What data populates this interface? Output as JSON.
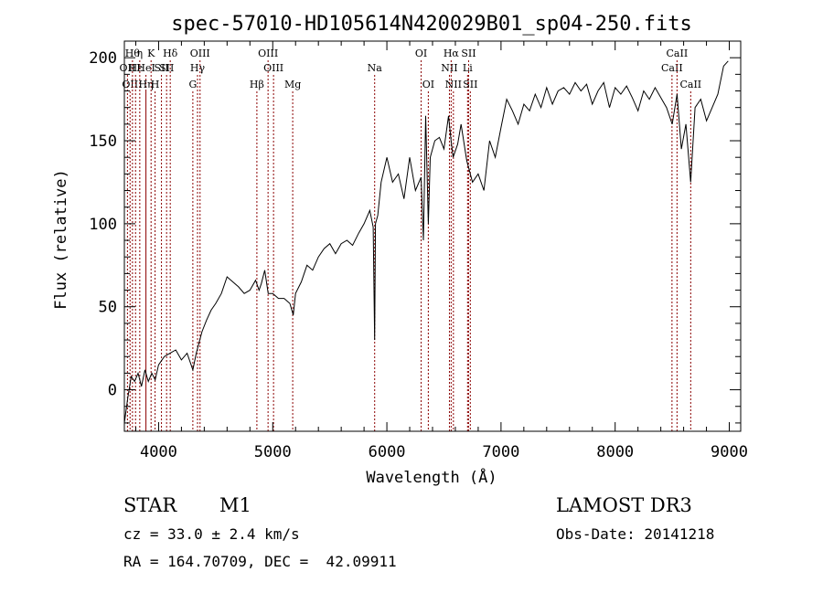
{
  "chart_data": {
    "type": "line",
    "title": "spec-57010-HD105614N420029B01_sp04-250.fits",
    "xlabel": "Wavelength (Å)",
    "ylabel": "Flux (relative)",
    "xlim": [
      3700,
      9100
    ],
    "ylim": [
      -25,
      210
    ],
    "xticks": [
      4000,
      5000,
      6000,
      7000,
      8000,
      9000
    ],
    "yticks": [
      0,
      50,
      100,
      150,
      200
    ],
    "grid": false,
    "legend": "none",
    "line_color": "#000000",
    "marker_color": "#8b0000",
    "series": [
      {
        "x": [
          3700,
          3730,
          3760,
          3790,
          3820,
          3850,
          3880,
          3910,
          3940,
          3970,
          4000,
          4050,
          4100,
          4150,
          4200,
          4250,
          4300,
          4330,
          4380,
          4420,
          4460,
          4500,
          4550,
          4600,
          4650,
          4700,
          4750,
          4800,
          4850,
          4880,
          4900,
          4930,
          4960,
          5000,
          5050,
          5100,
          5150,
          5180,
          5200,
          5250,
          5300,
          5350,
          5400,
          5450,
          5500,
          5550,
          5600,
          5650,
          5700,
          5750,
          5800,
          5850,
          5880,
          5893,
          5900,
          5920,
          5950,
          6000,
          6050,
          6100,
          6150,
          6200,
          6250,
          6300,
          6320,
          6340,
          6363,
          6380,
          6420,
          6460,
          6500,
          6540,
          6563,
          6580,
          6620,
          6650,
          6700,
          6750,
          6800,
          6850,
          6900,
          6950,
          7000,
          7050,
          7100,
          7150,
          7200,
          7250,
          7300,
          7350,
          7400,
          7450,
          7500,
          7550,
          7600,
          7650,
          7700,
          7750,
          7800,
          7850,
          7900,
          7950,
          8000,
          8050,
          8100,
          8150,
          8200,
          8250,
          8300,
          8350,
          8400,
          8450,
          8500,
          8542,
          8580,
          8620,
          8662,
          8700,
          8750,
          8800,
          8850,
          8900,
          8950,
          8990
        ],
        "y": [
          -20,
          -5,
          8,
          5,
          10,
          2,
          12,
          5,
          10,
          6,
          15,
          20,
          22,
          24,
          18,
          22,
          12,
          22,
          35,
          42,
          48,
          52,
          58,
          68,
          65,
          62,
          58,
          60,
          66,
          60,
          64,
          72,
          58,
          58,
          55,
          55,
          52,
          45,
          58,
          65,
          75,
          72,
          80,
          85,
          88,
          82,
          88,
          90,
          87,
          94,
          100,
          108,
          98,
          30,
          100,
          105,
          125,
          140,
          125,
          130,
          115,
          140,
          120,
          128,
          90,
          165,
          100,
          140,
          150,
          152,
          145,
          165,
          150,
          140,
          148,
          160,
          138,
          125,
          130,
          120,
          150,
          140,
          158,
          175,
          168,
          160,
          172,
          168,
          178,
          170,
          182,
          172,
          180,
          182,
          178,
          185,
          180,
          184,
          172,
          180,
          185,
          170,
          182,
          178,
          183,
          176,
          168,
          180,
          175,
          182,
          176,
          170,
          160,
          178,
          145,
          160,
          125,
          170,
          175,
          162,
          170,
          178,
          195,
          198
        ]
      }
    ],
    "line_markers": [
      {
        "x": 3727,
        "row": 2,
        "label": "OII"
      },
      {
        "x": 3750,
        "row": 3,
        "label": "OII"
      },
      {
        "x": 3771,
        "row": 1,
        "label": "Hθ"
      },
      {
        "x": 3798,
        "row": 2,
        "label": "Hε"
      },
      {
        "x": 3835,
        "row": 1,
        "label": "η"
      },
      {
        "x": 3889,
        "row": 2,
        "label": "HeI"
      },
      {
        "x": 3889,
        "row": 3,
        "label": "Hη"
      },
      {
        "x": 3934,
        "row": 1,
        "label": "K"
      },
      {
        "x": 3969,
        "row": 3,
        "label": "H"
      },
      {
        "x": 4025,
        "row": 2,
        "label": "SII"
      },
      {
        "x": 4070,
        "row": 2,
        "label": "SII"
      },
      {
        "x": 4102,
        "row": 1,
        "label": "Hδ"
      },
      {
        "x": 4300,
        "row": 3,
        "label": "G"
      },
      {
        "x": 4341,
        "row": 2,
        "label": "Hγ"
      },
      {
        "x": 4363,
        "row": 1,
        "label": "OIII"
      },
      {
        "x": 4861,
        "row": 3,
        "label": "Hβ"
      },
      {
        "x": 4959,
        "row": 1,
        "label": "OIII"
      },
      {
        "x": 5007,
        "row": 2,
        "label": "OIII"
      },
      {
        "x": 5175,
        "row": 3,
        "label": "Mg"
      },
      {
        "x": 5893,
        "row": 2,
        "label": "Na"
      },
      {
        "x": 6300,
        "row": 1,
        "label": "OI"
      },
      {
        "x": 6363,
        "row": 3,
        "label": "OI"
      },
      {
        "x": 6548,
        "row": 2,
        "label": "NII"
      },
      {
        "x": 6563,
        "row": 1,
        "label": "Hα"
      },
      {
        "x": 6583,
        "row": 3,
        "label": "NII"
      },
      {
        "x": 6707,
        "row": 2,
        "label": "Li"
      },
      {
        "x": 6716,
        "row": 1,
        "label": "SII"
      },
      {
        "x": 6731,
        "row": 3,
        "label": "SII"
      },
      {
        "x": 8498,
        "row": 2,
        "label": "CaII"
      },
      {
        "x": 8542,
        "row": 1,
        "label": "CaII"
      },
      {
        "x": 8662,
        "row": 3,
        "label": "CaII"
      }
    ]
  },
  "footer": {
    "class_label": "STAR",
    "subclass": "M1",
    "survey": "LAMOST DR3",
    "cz": "cz = 33.0 ± 2.4 km/s",
    "obs_date": "Obs-Date: 20141218",
    "coords": "RA = 164.70709, DEC =  42.09911"
  }
}
